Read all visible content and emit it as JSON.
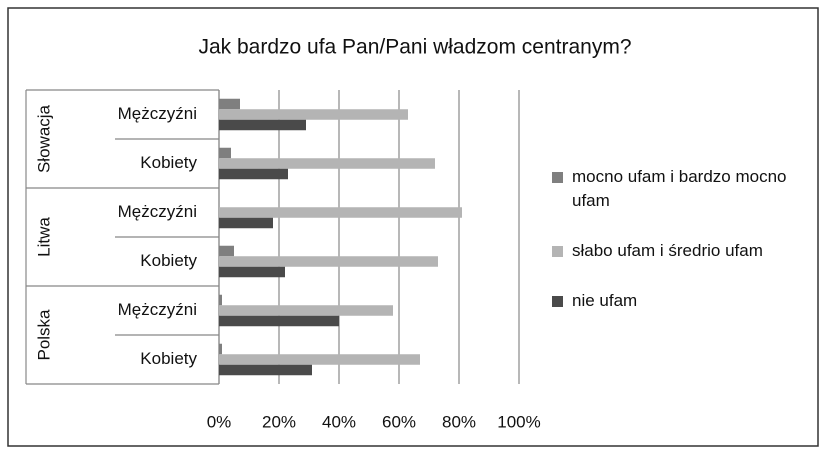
{
  "chart_data": {
    "type": "bar",
    "orientation": "horizontal",
    "title": "Jak bardzo ufa Pan/Pani władzom centranym?",
    "groups": [
      {
        "name": "Słowacja",
        "categories": [
          "Mężczyźni",
          "Kobiety"
        ]
      },
      {
        "name": "Litwa",
        "categories": [
          "Mężczyźni",
          "Kobiety"
        ]
      },
      {
        "name": "Polska",
        "categories": [
          "Mężczyźni",
          "Kobiety"
        ]
      }
    ],
    "series": [
      {
        "name": "mocno ufam i bardzo mocno ufam",
        "color": "#7f7f7f",
        "values": [
          7,
          4,
          0,
          5,
          1,
          1
        ]
      },
      {
        "name": "słabo ufam i średrio ufam",
        "color": "#b4b4b4",
        "values": [
          63,
          72,
          81,
          73,
          58,
          67
        ]
      },
      {
        "name": "nie ufam",
        "color": "#4a4a4a",
        "values": [
          29,
          23,
          18,
          22,
          40,
          31
        ]
      }
    ],
    "xlim": [
      0,
      100
    ],
    "xticks": [
      {
        "value": 0,
        "label": "0%"
      },
      {
        "value": 20,
        "label": "20%"
      },
      {
        "value": 40,
        "label": "40%"
      },
      {
        "value": 60,
        "label": "60%"
      },
      {
        "value": 80,
        "label": "80%"
      },
      {
        "value": 100,
        "label": "100%"
      }
    ],
    "grid": true,
    "legend": "right"
  }
}
